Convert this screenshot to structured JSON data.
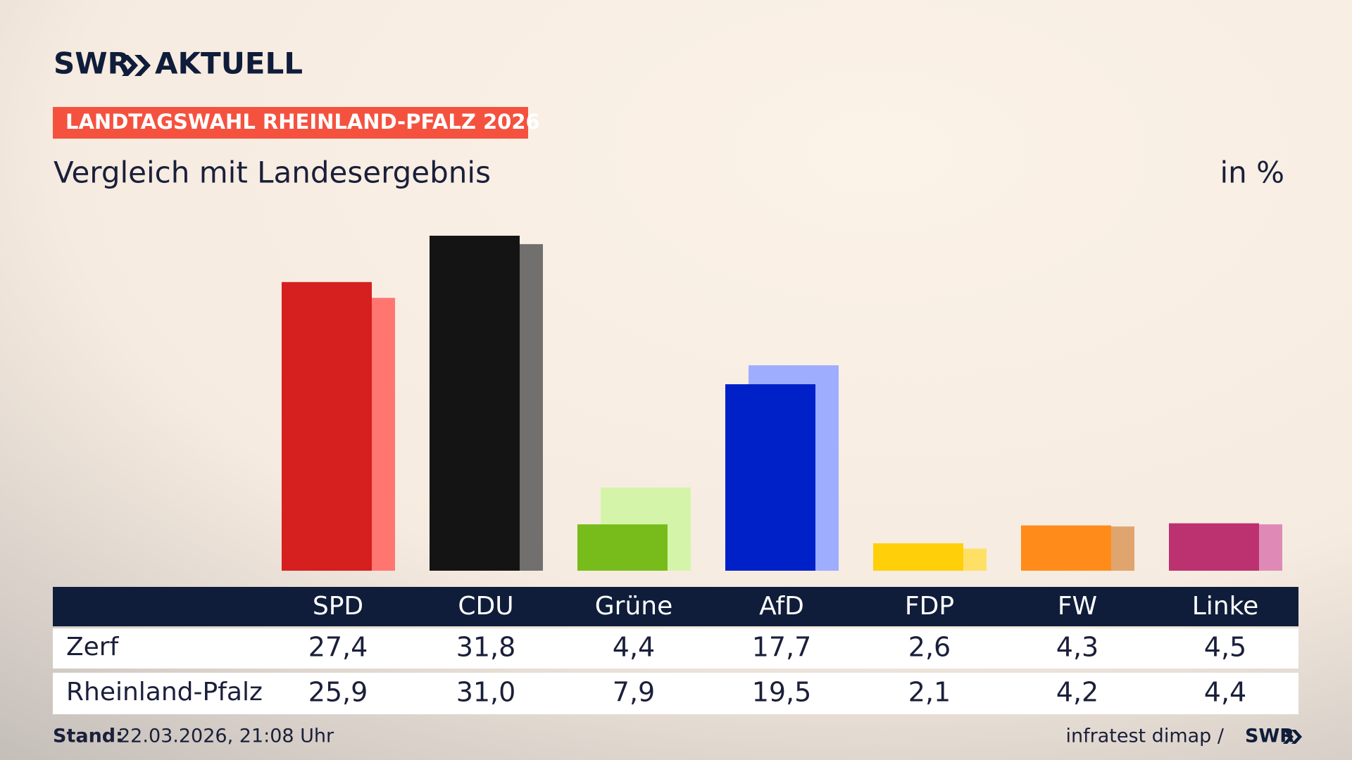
{
  "chart_data": {
    "type": "bar",
    "brand": "SWR",
    "brand_product": "AKTUELL",
    "kicker": "LANDTAGSWAHL RHEINLAND-PFALZ 2026",
    "title": "Vergleich mit Landesergebnis",
    "unit": "in %",
    "categories": [
      "SPD",
      "CDU",
      "Grüne",
      "AfD",
      "FDP",
      "FW",
      "Linke"
    ],
    "series": [
      {
        "name": "Zerf",
        "values": [
          27.4,
          31.8,
          4.4,
          17.7,
          2.6,
          4.3,
          4.5
        ],
        "value_labels": [
          "27,4",
          "31,8",
          "4,4",
          "17,7",
          "2,6",
          "4,3",
          "4,5"
        ],
        "colors": [
          "#d61f1f",
          "#141414",
          "#78bc1b",
          "#0020c8",
          "#ffcf0a",
          "#ff8c1a",
          "#bc3170"
        ]
      },
      {
        "name": "Rheinland-Pfalz",
        "values": [
          25.9,
          31.0,
          7.9,
          19.5,
          2.1,
          4.2,
          4.4
        ],
        "value_labels": [
          "25,9",
          "31,0",
          "7,9",
          "19,5",
          "2,1",
          "4,2",
          "4,4"
        ],
        "colors": [
          "#ff7670",
          "#72706e",
          "#d4f5a9",
          "#9fadff",
          "#ffe066",
          "#e0a56f",
          "#df8ab6"
        ]
      }
    ],
    "footer_label": "Stand:",
    "footer_date": "22.03.2026, 21:08 Uhr",
    "source": "infratest dimap /",
    "source_brand": "SWR"
  }
}
